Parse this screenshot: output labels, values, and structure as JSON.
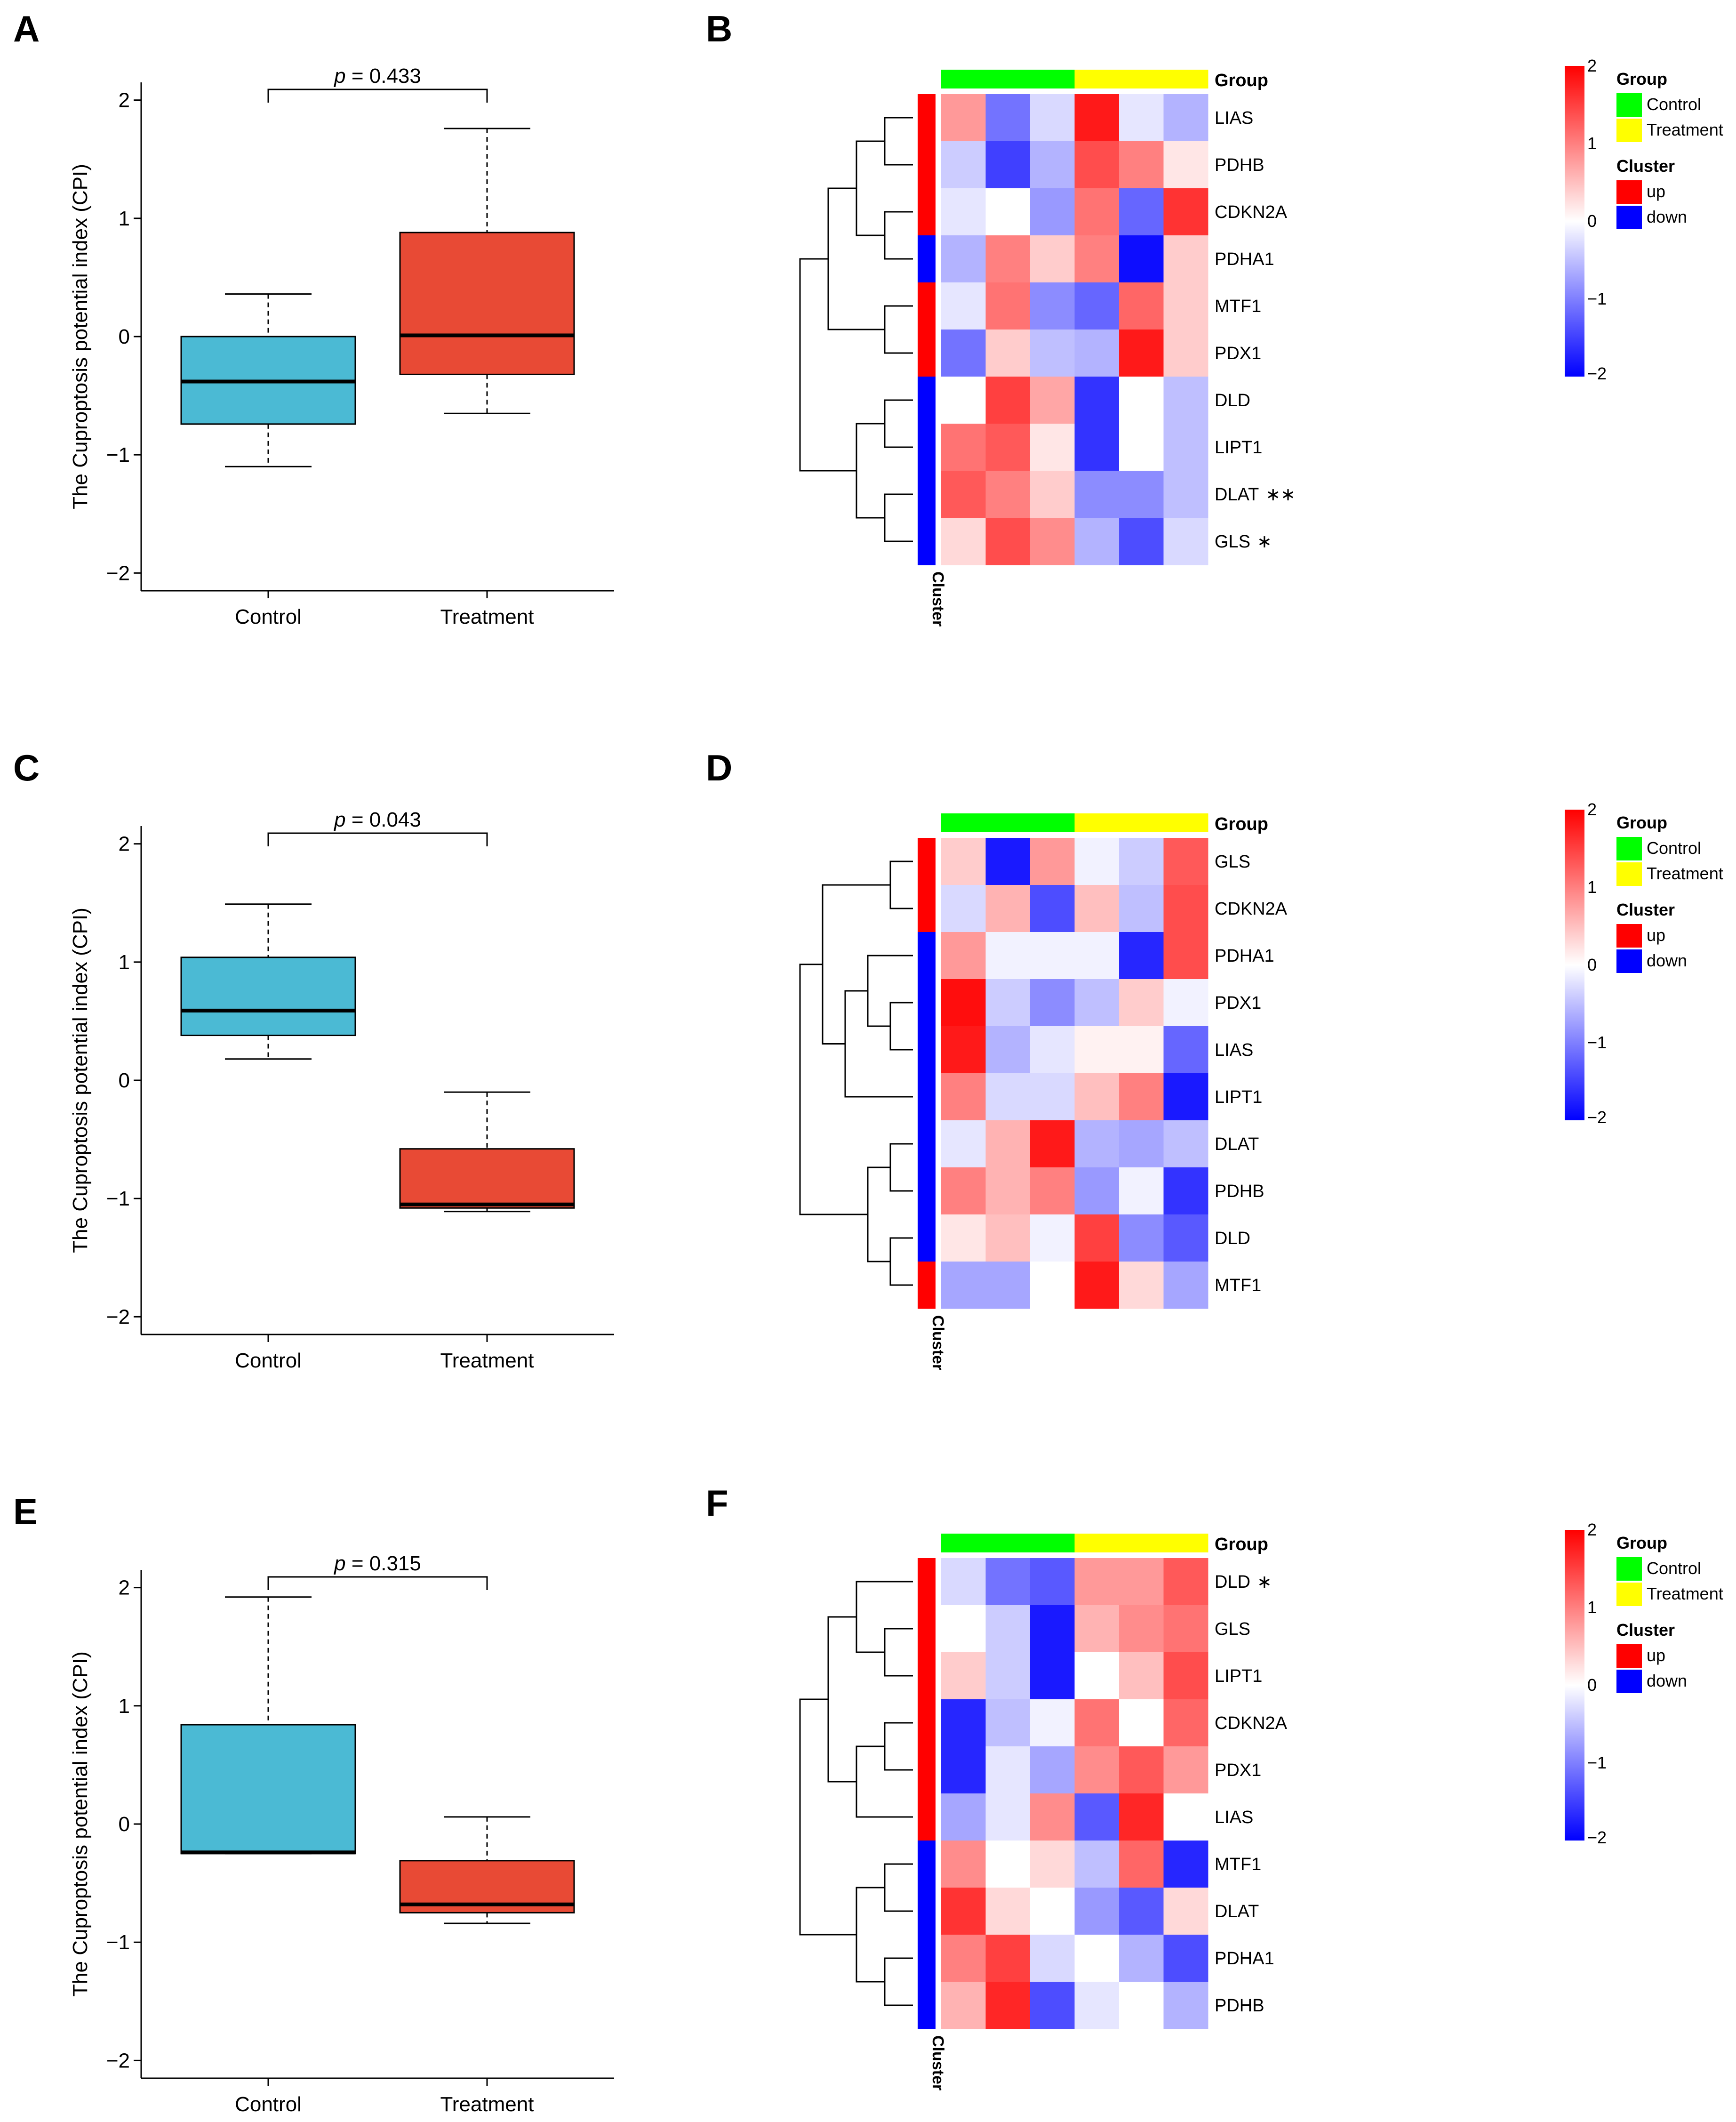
{
  "figure": {
    "boxplot_ylabel": "The Cuproptosis potential index (CPI)",
    "heatmap_cluster_label": "Cluster",
    "group_label": "Group",
    "legend": {
      "group_title": "Group",
      "group_items": [
        "Control",
        "Treatment"
      ],
      "group_colors": [
        "#00ff00",
        "#ffff00"
      ],
      "cluster_title": "Cluster",
      "cluster_items": [
        "up",
        "down"
      ],
      "cluster_colors": [
        "#ff0000",
        "#0000ff"
      ],
      "scale_ticks": [
        "2",
        "1",
        "0",
        "−1",
        "−2"
      ],
      "scale_values": [
        2,
        1,
        0,
        -1,
        -2
      ]
    }
  },
  "chart_data": [
    {
      "panel": "A",
      "type": "boxplot",
      "categories": [
        "Control",
        "Treatment"
      ],
      "ylim": [
        -2.15,
        2.15
      ],
      "yticks": [
        2,
        1,
        0,
        -1,
        -2
      ],
      "ytick_labels": [
        "2",
        "1",
        "0",
        "−1",
        "−2"
      ],
      "boxes": [
        {
          "name": "Control",
          "q1": -0.74,
          "median": -0.38,
          "q3": 0.0,
          "whisker_low": -1.1,
          "whisker_high": 0.36,
          "color": "#4bbad4"
        },
        {
          "name": "Treatment",
          "q1": -0.32,
          "median": 0.01,
          "q3": 0.88,
          "whisker_low": -0.65,
          "whisker_high": 1.76,
          "color": "#e84a35"
        }
      ],
      "p_label": "p",
      "p_value": "= 0.433"
    },
    {
      "panel": "B",
      "type": "heatmap",
      "rows": [
        "LIAS",
        "PDHB",
        "CDKN2A",
        "PDHA1",
        "MTF1",
        "PDX1",
        "DLD",
        "LIPT1",
        "DLAT",
        "GLS"
      ],
      "row_marks": [
        "",
        "",
        "",
        "",
        "",
        "",
        "",
        "",
        "∗∗",
        "∗"
      ],
      "columns": [
        "Control",
        "Control",
        "Control",
        "Treatment",
        "Treatment",
        "Treatment"
      ],
      "cluster": [
        "up",
        "up",
        "up",
        "down",
        "up",
        "up",
        "down",
        "down",
        "down",
        "down"
      ],
      "values": [
        [
          0.8,
          -1.1,
          -0.3,
          1.8,
          -0.2,
          -0.6
        ],
        [
          -0.4,
          -1.5,
          -0.6,
          1.4,
          1.0,
          0.2
        ],
        [
          -0.2,
          0.0,
          -0.8,
          1.1,
          -1.2,
          1.6
        ],
        [
          -0.6,
          1.0,
          0.4,
          1.0,
          -1.9,
          0.4
        ],
        [
          -0.2,
          1.1,
          -0.9,
          -1.2,
          1.2,
          0.4
        ],
        [
          -1.1,
          0.4,
          -0.5,
          -0.6,
          1.8,
          0.4
        ],
        [
          0.0,
          1.5,
          0.7,
          -1.6,
          0.0,
          -0.5
        ],
        [
          1.1,
          1.3,
          0.2,
          -1.6,
          0.0,
          -0.5
        ],
        [
          1.3,
          1.0,
          0.4,
          -0.9,
          -0.9,
          -0.5
        ],
        [
          0.3,
          1.4,
          0.9,
          -0.6,
          -1.4,
          -0.3
        ]
      ],
      "scale_range": [
        -2,
        2
      ]
    },
    {
      "panel": "C",
      "type": "boxplot",
      "categories": [
        "Control",
        "Treatment"
      ],
      "ylim": [
        -2.15,
        2.15
      ],
      "yticks": [
        2,
        1,
        0,
        -1,
        -2
      ],
      "ytick_labels": [
        "2",
        "1",
        "0",
        "−1",
        "−2"
      ],
      "boxes": [
        {
          "name": "Control",
          "q1": 0.38,
          "median": 0.59,
          "q3": 1.04,
          "whisker_low": 0.18,
          "whisker_high": 1.49,
          "color": "#4bbad4"
        },
        {
          "name": "Treatment",
          "q1": -1.08,
          "median": -1.05,
          "q3": -0.58,
          "whisker_low": -1.11,
          "whisker_high": -0.1,
          "color": "#e84a35"
        }
      ],
      "p_label": "p",
      "p_value": "= 0.043"
    },
    {
      "panel": "D",
      "type": "heatmap",
      "rows": [
        "GLS",
        "CDKN2A",
        "PDHA1",
        "PDX1",
        "LIAS",
        "LIPT1",
        "DLAT",
        "PDHB",
        "DLD",
        "MTF1"
      ],
      "row_marks": [
        "",
        "",
        "",
        "",
        "",
        "",
        "",
        "",
        "",
        ""
      ],
      "columns": [
        "Control",
        "Control",
        "Control",
        "Treatment",
        "Treatment",
        "Treatment"
      ],
      "cluster": [
        "up",
        "up",
        "down",
        "down",
        "down",
        "down",
        "down",
        "down",
        "down",
        "up"
      ],
      "values": [
        [
          0.4,
          -1.8,
          0.8,
          -0.1,
          -0.4,
          1.3
        ],
        [
          -0.3,
          0.6,
          -1.4,
          0.5,
          -0.5,
          1.4
        ],
        [
          0.8,
          -0.1,
          -0.1,
          -0.1,
          -1.7,
          1.4
        ],
        [
          1.9,
          -0.4,
          -0.9,
          -0.5,
          0.4,
          -0.1
        ],
        [
          1.8,
          -0.6,
          -0.2,
          0.1,
          0.1,
          -1.2
        ],
        [
          1.0,
          -0.3,
          -0.3,
          0.5,
          1.0,
          -1.8
        ],
        [
          -0.2,
          0.6,
          1.8,
          -0.6,
          -0.7,
          -0.5
        ],
        [
          1.0,
          0.6,
          1.0,
          -0.8,
          -0.1,
          -1.6
        ],
        [
          0.2,
          0.5,
          -0.1,
          1.5,
          -0.9,
          -1.3
        ],
        [
          -0.7,
          -0.7,
          0.0,
          1.8,
          0.3,
          -0.7
        ]
      ],
      "scale_range": [
        -2,
        2
      ]
    },
    {
      "panel": "E",
      "type": "boxplot",
      "categories": [
        "Control",
        "Treatment"
      ],
      "ylim": [
        -2.15,
        2.15
      ],
      "yticks": [
        2,
        1,
        0,
        -1,
        -2
      ],
      "ytick_labels": [
        "2",
        "1",
        "0",
        "−1",
        "−2"
      ],
      "boxes": [
        {
          "name": "Control",
          "q1": -0.25,
          "median": -0.24,
          "q3": 0.84,
          "whisker_low": -0.25,
          "whisker_high": 1.92,
          "color": "#4bbad4"
        },
        {
          "name": "Treatment",
          "q1": -0.75,
          "median": -0.68,
          "q3": -0.31,
          "whisker_low": -0.84,
          "whisker_high": 0.06,
          "color": "#e84a35"
        }
      ],
      "p_label": "p",
      "p_value": "= 0.315"
    },
    {
      "panel": "F",
      "type": "heatmap",
      "rows": [
        "DLD",
        "GLS",
        "LIPT1",
        "CDKN2A",
        "PDX1",
        "LIAS",
        "MTF1",
        "DLAT",
        "PDHA1",
        "PDHB"
      ],
      "row_marks": [
        "∗",
        "",
        "",
        "",
        "",
        "",
        "",
        "",
        "",
        ""
      ],
      "columns": [
        "Control",
        "Control",
        "Control",
        "Treatment",
        "Treatment",
        "Treatment"
      ],
      "cluster": [
        "up",
        "up",
        "up",
        "up",
        "up",
        "up",
        "down",
        "down",
        "down",
        "down"
      ],
      "values": [
        [
          -0.3,
          -1.1,
          -1.3,
          0.8,
          0.8,
          1.3
        ],
        [
          0.0,
          -0.4,
          -1.8,
          0.6,
          0.9,
          1.1
        ],
        [
          0.4,
          -0.4,
          -1.8,
          0.0,
          0.5,
          1.4
        ],
        [
          -1.7,
          -0.5,
          -0.1,
          1.1,
          0.0,
          1.2
        ],
        [
          -1.7,
          -0.2,
          -0.7,
          0.9,
          1.3,
          0.8
        ],
        [
          -0.7,
          -0.2,
          0.9,
          -1.3,
          1.7,
          0.0
        ],
        [
          0.9,
          0.0,
          0.3,
          -0.5,
          1.2,
          -1.7
        ],
        [
          1.6,
          0.3,
          0.0,
          -0.8,
          -1.3,
          0.3
        ],
        [
          1.0,
          1.5,
          -0.3,
          0.0,
          -0.6,
          -1.4
        ],
        [
          0.6,
          1.7,
          -1.4,
          -0.2,
          0.0,
          -0.6
        ]
      ],
      "scale_range": [
        -2,
        2
      ]
    }
  ]
}
